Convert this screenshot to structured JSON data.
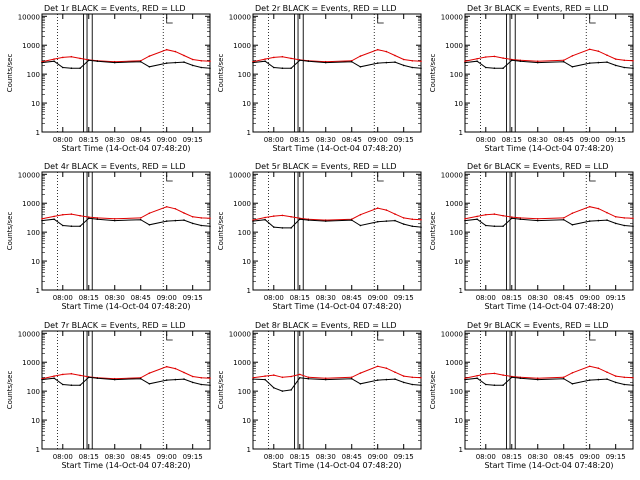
{
  "chart_data": [
    {
      "type": "line",
      "title": "Det 1r BLACK = Events, RED = LLD",
      "xlabel": "Start Time (14-Oct-04 07:48:20)",
      "ylabel": "Counts/sec",
      "xticks": [
        "08:00",
        "08:15",
        "08:30",
        "08:45",
        "09:00",
        "09:15"
      ],
      "yticks": [
        "1",
        "10",
        "100",
        "1000",
        "10000"
      ],
      "ylog": true,
      "ylim": [
        1,
        12000
      ],
      "x": [
        "07:48",
        "07:55",
        "08:00",
        "08:05",
        "08:10",
        "08:15",
        "08:20",
        "08:30",
        "08:45",
        "08:50",
        "09:00",
        "09:05",
        "09:10",
        "09:15",
        "09:20",
        "09:25"
      ],
      "series": [
        {
          "name": "LLD",
          "color": "#e00000",
          "values": [
            270,
            330,
            380,
            400,
            350,
            310,
            290,
            270,
            290,
            420,
            700,
            600,
            440,
            320,
            290,
            280
          ]
        },
        {
          "name": "Events",
          "color": "#000000",
          "values": [
            250,
            280,
            170,
            160,
            160,
            300,
            280,
            250,
            270,
            180,
            240,
            250,
            260,
            200,
            170,
            160
          ]
        }
      ]
    },
    {
      "type": "line",
      "title": "Det 2r BLACK = Events, RED = LLD",
      "xlabel": "Start Time (14-Oct-04 07:48:20)",
      "ylabel": "Counts/sec",
      "xticks": [
        "08:00",
        "08:15",
        "08:30",
        "08:45",
        "09:00",
        "09:15"
      ],
      "yticks": [
        "1",
        "10",
        "100",
        "1000",
        "10000"
      ],
      "ylog": true,
      "ylim": [
        1,
        12000
      ],
      "x": [
        "07:48",
        "07:55",
        "08:00",
        "08:05",
        "08:10",
        "08:15",
        "08:20",
        "08:30",
        "08:45",
        "08:50",
        "09:00",
        "09:05",
        "09:10",
        "09:15",
        "09:20",
        "09:25"
      ],
      "series": [
        {
          "name": "LLD",
          "color": "#e00000",
          "values": [
            270,
            330,
            380,
            400,
            350,
            310,
            290,
            270,
            290,
            420,
            700,
            600,
            440,
            320,
            290,
            280
          ]
        },
        {
          "name": "Events",
          "color": "#000000",
          "values": [
            250,
            280,
            170,
            160,
            160,
            300,
            280,
            250,
            270,
            180,
            240,
            250,
            260,
            200,
            170,
            160
          ]
        }
      ]
    },
    {
      "type": "line",
      "title": "Det 3r BLACK = Events, RED = LLD",
      "xlabel": "Start Time (14-Oct-04 07:48:20)",
      "ylabel": "Counts/sec",
      "xticks": [
        "08:00",
        "08:15",
        "08:30",
        "08:45",
        "09:00",
        "09:15"
      ],
      "yticks": [
        "1",
        "10",
        "100",
        "1000",
        "10000"
      ],
      "ylog": true,
      "ylim": [
        1,
        12000
      ],
      "x": [
        "07:48",
        "07:55",
        "08:00",
        "08:05",
        "08:10",
        "08:15",
        "08:20",
        "08:30",
        "08:45",
        "08:50",
        "09:00",
        "09:05",
        "09:10",
        "09:15",
        "09:20",
        "09:25"
      ],
      "series": [
        {
          "name": "LLD",
          "color": "#e00000",
          "values": [
            280,
            340,
            390,
            410,
            360,
            320,
            300,
            280,
            300,
            430,
            720,
            620,
            450,
            330,
            300,
            290
          ]
        },
        {
          "name": "Events",
          "color": "#000000",
          "values": [
            250,
            280,
            170,
            160,
            160,
            300,
            280,
            250,
            270,
            180,
            240,
            250,
            260,
            200,
            170,
            160
          ]
        }
      ]
    },
    {
      "type": "line",
      "title": "Det 4r BLACK = Events, RED = LLD",
      "xlabel": "Start Time (14-Oct-04 07:48:20)",
      "ylabel": "Counts/sec",
      "xticks": [
        "08:00",
        "08:15",
        "08:30",
        "08:45",
        "09:00",
        "09:15"
      ],
      "yticks": [
        "1",
        "10",
        "100",
        "1000",
        "10000"
      ],
      "ylog": true,
      "ylim": [
        1,
        12000
      ],
      "x": [
        "07:48",
        "07:55",
        "08:00",
        "08:05",
        "08:10",
        "08:15",
        "08:20",
        "08:30",
        "08:45",
        "08:50",
        "09:00",
        "09:05",
        "09:10",
        "09:15",
        "09:20",
        "09:25"
      ],
      "series": [
        {
          "name": "LLD",
          "color": "#e00000",
          "values": [
            290,
            350,
            400,
            420,
            370,
            330,
            310,
            290,
            310,
            450,
            750,
            640,
            460,
            340,
            310,
            300
          ]
        },
        {
          "name": "Events",
          "color": "#000000",
          "values": [
            250,
            280,
            170,
            160,
            160,
            300,
            280,
            250,
            270,
            180,
            240,
            250,
            260,
            200,
            170,
            160
          ]
        }
      ]
    },
    {
      "type": "line",
      "title": "Det 5r BLACK = Events, RED = LLD",
      "xlabel": "Start Time (14-Oct-04 07:48:20)",
      "ylabel": "Counts/sec",
      "xticks": [
        "08:00",
        "08:15",
        "08:30",
        "08:45",
        "09:00",
        "09:15"
      ],
      "yticks": [
        "1",
        "10",
        "100",
        "1000",
        "10000"
      ],
      "ylog": true,
      "ylim": [
        1,
        12000
      ],
      "x": [
        "07:48",
        "07:55",
        "08:00",
        "08:05",
        "08:10",
        "08:15",
        "08:20",
        "08:30",
        "08:45",
        "08:50",
        "09:00",
        "09:05",
        "09:10",
        "09:15",
        "09:20",
        "09:25"
      ],
      "series": [
        {
          "name": "LLD",
          "color": "#e00000",
          "values": [
            260,
            320,
            360,
            380,
            340,
            300,
            280,
            260,
            280,
            400,
            680,
            580,
            420,
            310,
            280,
            270
          ]
        },
        {
          "name": "Events",
          "color": "#000000",
          "values": [
            240,
            270,
            150,
            140,
            140,
            280,
            260,
            240,
            260,
            170,
            230,
            240,
            250,
            190,
            160,
            150
          ]
        }
      ]
    },
    {
      "type": "line",
      "title": "Det 6r BLACK = Events, RED = LLD",
      "xlabel": "Start Time (14-Oct-04 07:48:20)",
      "ylabel": "Counts/sec",
      "xticks": [
        "08:00",
        "08:15",
        "08:30",
        "08:45",
        "09:00",
        "09:15"
      ],
      "yticks": [
        "1",
        "10",
        "100",
        "1000",
        "10000"
      ],
      "ylog": true,
      "ylim": [
        1,
        12000
      ],
      "x": [
        "07:48",
        "07:55",
        "08:00",
        "08:05",
        "08:10",
        "08:15",
        "08:20",
        "08:30",
        "08:45",
        "08:50",
        "09:00",
        "09:05",
        "09:10",
        "09:15",
        "09:20",
        "09:25"
      ],
      "series": [
        {
          "name": "LLD",
          "color": "#e00000",
          "values": [
            290,
            350,
            400,
            420,
            370,
            330,
            310,
            290,
            310,
            450,
            760,
            650,
            470,
            340,
            310,
            300
          ]
        },
        {
          "name": "Events",
          "color": "#000000",
          "values": [
            250,
            280,
            170,
            160,
            160,
            300,
            280,
            250,
            270,
            180,
            240,
            250,
            260,
            200,
            170,
            160
          ]
        }
      ]
    },
    {
      "type": "line",
      "title": "Det 7r BLACK = Events, RED = LLD",
      "xlabel": "Start Time (14-Oct-04 07:48:20)",
      "ylabel": "Counts/sec",
      "xticks": [
        "08:00",
        "08:15",
        "08:30",
        "08:45",
        "09:00",
        "09:15"
      ],
      "yticks": [
        "1",
        "10",
        "100",
        "1000",
        "10000"
      ],
      "ylog": true,
      "ylim": [
        1,
        12000
      ],
      "x": [
        "07:48",
        "07:55",
        "08:00",
        "08:05",
        "08:10",
        "08:15",
        "08:20",
        "08:30",
        "08:45",
        "08:50",
        "09:00",
        "09:05",
        "09:10",
        "09:15",
        "09:20",
        "09:25"
      ],
      "series": [
        {
          "name": "LLD",
          "color": "#e00000",
          "values": [
            270,
            330,
            380,
            400,
            350,
            310,
            290,
            270,
            290,
            420,
            700,
            600,
            440,
            320,
            290,
            280
          ]
        },
        {
          "name": "Events",
          "color": "#000000",
          "values": [
            250,
            280,
            170,
            160,
            160,
            300,
            280,
            250,
            270,
            180,
            240,
            250,
            260,
            200,
            170,
            160
          ]
        }
      ]
    },
    {
      "type": "line",
      "title": "Det 8r BLACK = Events, RED = LLD",
      "xlabel": "Start Time (14-Oct-04 07:48:20)",
      "ylabel": "Counts/sec",
      "xticks": [
        "08:00",
        "08:15",
        "08:30",
        "08:45",
        "09:00",
        "09:15"
      ],
      "yticks": [
        "1",
        "10",
        "100",
        "1000",
        "10000"
      ],
      "ylog": true,
      "ylim": [
        1,
        12000
      ],
      "x": [
        "07:48",
        "07:55",
        "08:00",
        "08:05",
        "08:10",
        "08:15",
        "08:20",
        "08:30",
        "08:45",
        "08:50",
        "09:00",
        "09:05",
        "09:10",
        "09:15",
        "09:20",
        "09:25"
      ],
      "series": [
        {
          "name": "LLD",
          "color": "#e00000",
          "values": [
            290,
            330,
            360,
            300,
            320,
            380,
            300,
            280,
            300,
            420,
            720,
            620,
            450,
            330,
            300,
            290
          ]
        },
        {
          "name": "Events",
          "color": "#000000",
          "values": [
            260,
            250,
            130,
            100,
            110,
            290,
            270,
            250,
            270,
            180,
            240,
            250,
            260,
            200,
            170,
            160
          ]
        }
      ]
    },
    {
      "type": "line",
      "title": "Det 9r BLACK = Events, RED = LLD",
      "xlabel": "Start Time (14-Oct-04 07:48:20)",
      "ylabel": "Counts/sec",
      "xticks": [
        "08:00",
        "08:15",
        "08:30",
        "08:45",
        "09:00",
        "09:15"
      ],
      "yticks": [
        "1",
        "10",
        "100",
        "1000",
        "10000"
      ],
      "ylog": true,
      "ylim": [
        1,
        12000
      ],
      "x": [
        "07:48",
        "07:55",
        "08:00",
        "08:05",
        "08:10",
        "08:15",
        "08:20",
        "08:30",
        "08:45",
        "08:50",
        "09:00",
        "09:05",
        "09:10",
        "09:15",
        "09:20",
        "09:25"
      ],
      "series": [
        {
          "name": "LLD",
          "color": "#e00000",
          "values": [
            280,
            340,
            390,
            410,
            360,
            320,
            300,
            280,
            300,
            430,
            720,
            620,
            450,
            330,
            300,
            290
          ]
        },
        {
          "name": "Events",
          "color": "#000000",
          "values": [
            250,
            280,
            170,
            160,
            160,
            300,
            280,
            250,
            270,
            180,
            240,
            250,
            260,
            200,
            170,
            160
          ]
        }
      ]
    }
  ]
}
